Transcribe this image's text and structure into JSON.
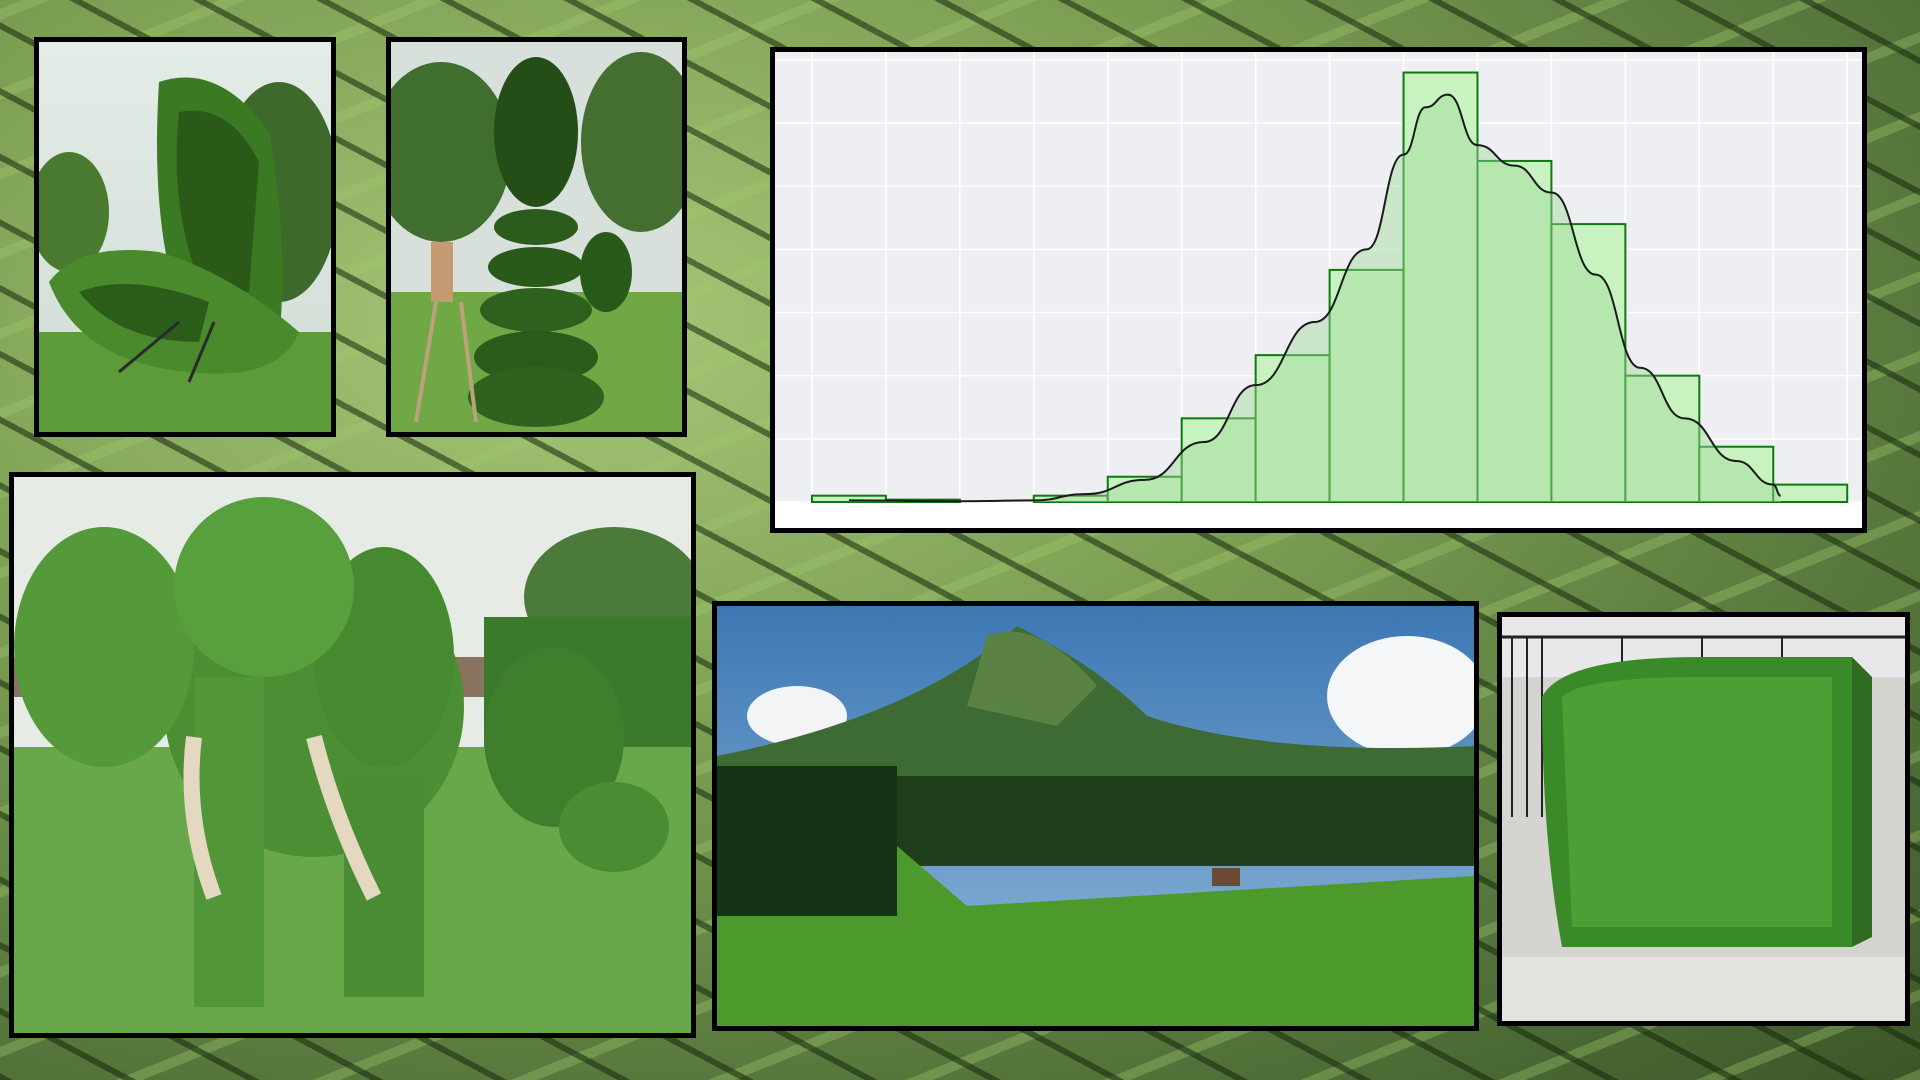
{
  "collage": {
    "background": "hedge-maze-photo",
    "panels": [
      {
        "name": "butterfly-topiary-photo"
      },
      {
        "name": "spiral-topiary-photo"
      },
      {
        "name": "histogram-chart"
      },
      {
        "name": "elephant-topiary-photo"
      },
      {
        "name": "mountain-meadow-photo"
      },
      {
        "name": "cube-hedge-photo"
      }
    ]
  },
  "colors": {
    "bar_fill": "#c8f2c0",
    "bar_stroke": "#0c7a0c",
    "density_fill": "#9ed99a",
    "density_line": "#1a1a1a",
    "plot_bg": "#eeeff2",
    "grid": "#ffffff"
  },
  "chart_data": {
    "type": "bar",
    "title": "",
    "xlabel": "",
    "ylabel": "",
    "grid": true,
    "legend": "none",
    "bin_edges": [
      0,
      1,
      2,
      3,
      4,
      5,
      6,
      7,
      8,
      9,
      10,
      11,
      12,
      13,
      14
    ],
    "values": [
      0.4,
      0.15,
      0.0,
      0.4,
      1.6,
      5.3,
      9.3,
      14.7,
      27.2,
      21.6,
      17.6,
      8.0,
      3.5,
      1.1
    ],
    "density": [
      [
        0.5,
        0.1
      ],
      [
        2.0,
        0.05
      ],
      [
        3.0,
        0.1
      ],
      [
        3.7,
        0.5
      ],
      [
        4.5,
        1.4
      ],
      [
        5.3,
        3.8
      ],
      [
        6.0,
        7.4
      ],
      [
        6.8,
        11.4
      ],
      [
        7.5,
        16.0
      ],
      [
        8.0,
        22.0
      ],
      [
        8.3,
        25.0
      ],
      [
        8.6,
        25.8
      ],
      [
        9.0,
        22.6
      ],
      [
        9.5,
        21.3
      ],
      [
        10.0,
        19.6
      ],
      [
        10.6,
        14.4
      ],
      [
        11.2,
        8.5
      ],
      [
        11.8,
        5.3
      ],
      [
        12.5,
        2.6
      ],
      [
        13.0,
        1.1
      ],
      [
        13.1,
        0.4
      ]
    ],
    "xlim": [
      -0.5,
      14.2
    ],
    "ylim": [
      0,
      28.5
    ]
  }
}
